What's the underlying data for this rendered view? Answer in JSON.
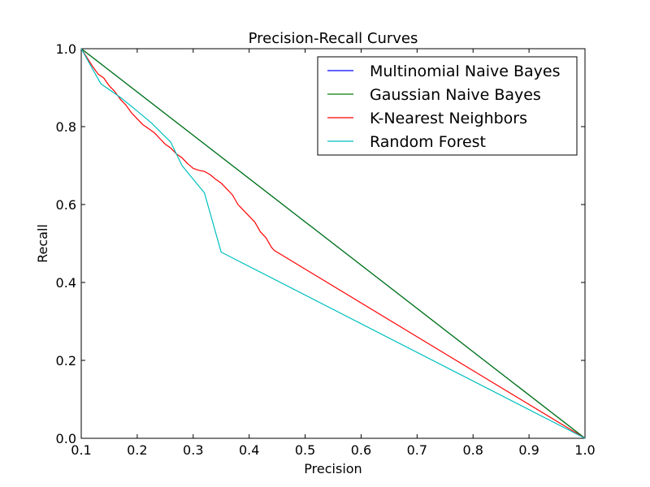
{
  "chart_data": {
    "type": "line",
    "title": "Precision-Recall Curves",
    "xlabel": "Precision",
    "ylabel": "Recall",
    "xlim": [
      0.1,
      1.0
    ],
    "ylim": [
      0.0,
      1.0
    ],
    "xticks": [
      0.1,
      0.2,
      0.3,
      0.4,
      0.5,
      0.6,
      0.7,
      0.8,
      0.9,
      1.0
    ],
    "yticks": [
      0.0,
      0.2,
      0.4,
      0.6,
      0.8,
      1.0
    ],
    "grid": false,
    "legend_position": "top-right",
    "series": [
      {
        "name": "Multinomial Naive Bayes",
        "color": "#0000ff",
        "points": [
          [
            0.1,
            1.0
          ],
          [
            1.0,
            0.0
          ]
        ]
      },
      {
        "name": "Gaussian Naive Bayes",
        "color": "#008000",
        "points": [
          [
            0.1,
            1.0
          ],
          [
            1.0,
            0.0
          ]
        ]
      },
      {
        "name": "K-Nearest Neighbors",
        "color": "#ff0000",
        "points": [
          [
            0.1,
            1.0
          ],
          [
            0.12,
            0.955
          ],
          [
            0.13,
            0.935
          ],
          [
            0.14,
            0.925
          ],
          [
            0.15,
            0.905
          ],
          [
            0.16,
            0.89
          ],
          [
            0.17,
            0.87
          ],
          [
            0.18,
            0.855
          ],
          [
            0.19,
            0.835
          ],
          [
            0.2,
            0.82
          ],
          [
            0.21,
            0.805
          ],
          [
            0.22,
            0.795
          ],
          [
            0.23,
            0.785
          ],
          [
            0.24,
            0.77
          ],
          [
            0.25,
            0.755
          ],
          [
            0.26,
            0.745
          ],
          [
            0.27,
            0.73
          ],
          [
            0.28,
            0.72
          ],
          [
            0.29,
            0.705
          ],
          [
            0.3,
            0.693
          ],
          [
            0.31,
            0.688
          ],
          [
            0.32,
            0.685
          ],
          [
            0.33,
            0.677
          ],
          [
            0.34,
            0.665
          ],
          [
            0.35,
            0.655
          ],
          [
            0.36,
            0.64
          ],
          [
            0.37,
            0.625
          ],
          [
            0.38,
            0.6
          ],
          [
            0.39,
            0.585
          ],
          [
            0.4,
            0.57
          ],
          [
            0.41,
            0.555
          ],
          [
            0.42,
            0.53
          ],
          [
            0.43,
            0.515
          ],
          [
            0.44,
            0.49
          ],
          [
            0.445,
            0.482
          ],
          [
            1.0,
            0.0
          ]
        ]
      },
      {
        "name": "Random Forest",
        "color": "#00bfbf",
        "points": [
          [
            0.1,
            1.0
          ],
          [
            0.135,
            0.91
          ],
          [
            0.17,
            0.875
          ],
          [
            0.2,
            0.84
          ],
          [
            0.225,
            0.81
          ],
          [
            0.26,
            0.76
          ],
          [
            0.28,
            0.7
          ],
          [
            0.32,
            0.63
          ],
          [
            0.35,
            0.478
          ],
          [
            1.0,
            0.0
          ]
        ]
      }
    ]
  }
}
